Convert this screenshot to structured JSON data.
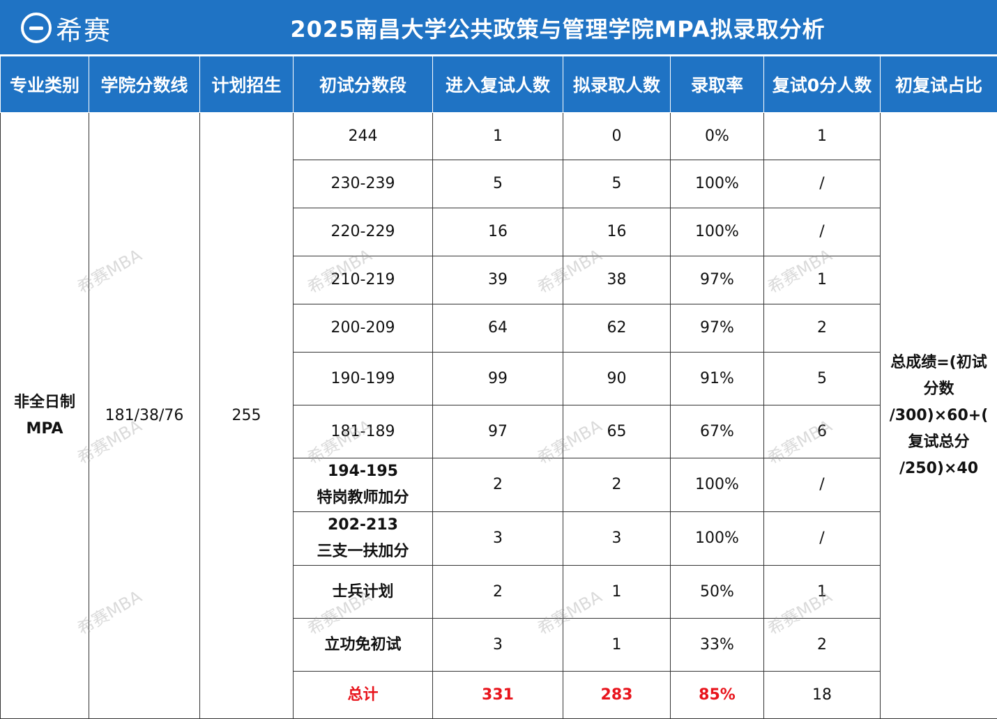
{
  "header": {
    "logo_text": "希赛",
    "title": "2025南昌大学公共政策与管理学院MPA拟录取分析"
  },
  "table": {
    "columns": [
      "专业类别",
      "学院分数线",
      "计划招生",
      "初试分数段",
      "进入复试人数",
      "拟录取人数",
      "录取率",
      "复试0分人数",
      "初复试占比"
    ],
    "category": [
      "非全日制",
      "MPA"
    ],
    "cutoff": "181/38/76",
    "plan": "255",
    "formula": [
      "总成绩=(初试",
      "分数",
      "/300)×60+(",
      "复试总分",
      "/250)×40"
    ],
    "rows": [
      {
        "range": [
          "244"
        ],
        "entered": "1",
        "admitted": "0",
        "rate": "0%",
        "zero": "1"
      },
      {
        "range": [
          "230-239"
        ],
        "entered": "5",
        "admitted": "5",
        "rate": "100%",
        "zero": "/"
      },
      {
        "range": [
          "220-229"
        ],
        "entered": "16",
        "admitted": "16",
        "rate": "100%",
        "zero": "/"
      },
      {
        "range": [
          "210-219"
        ],
        "entered": "39",
        "admitted": "38",
        "rate": "97%",
        "zero": "1"
      },
      {
        "range": [
          "200-209"
        ],
        "entered": "64",
        "admitted": "62",
        "rate": "97%",
        "zero": "2"
      },
      {
        "range": [
          "190-199"
        ],
        "entered": "99",
        "admitted": "90",
        "rate": "91%",
        "zero": "5"
      },
      {
        "range": [
          "181-189"
        ],
        "entered": "97",
        "admitted": "65",
        "rate": "67%",
        "zero": "6"
      },
      {
        "range": [
          "194-195",
          "特岗教师加分"
        ],
        "entered": "2",
        "admitted": "2",
        "rate": "100%",
        "zero": "/"
      },
      {
        "range": [
          "202-213",
          "三支一扶加分"
        ],
        "entered": "3",
        "admitted": "3",
        "rate": "100%",
        "zero": "/"
      },
      {
        "range": [
          "士兵计划"
        ],
        "entered": "2",
        "admitted": "1",
        "rate": "50%",
        "zero": "1"
      },
      {
        "range": [
          "立功免初试"
        ],
        "entered": "3",
        "admitted": "1",
        "rate": "33%",
        "zero": "2"
      }
    ],
    "total": {
      "label": "总计",
      "entered": "331",
      "admitted": "283",
      "rate": "85%",
      "zero": "18"
    }
  },
  "watermark_text": "希赛MBA",
  "colors": {
    "header_blue": "#1f73c4",
    "total_red": "#e8141c"
  }
}
